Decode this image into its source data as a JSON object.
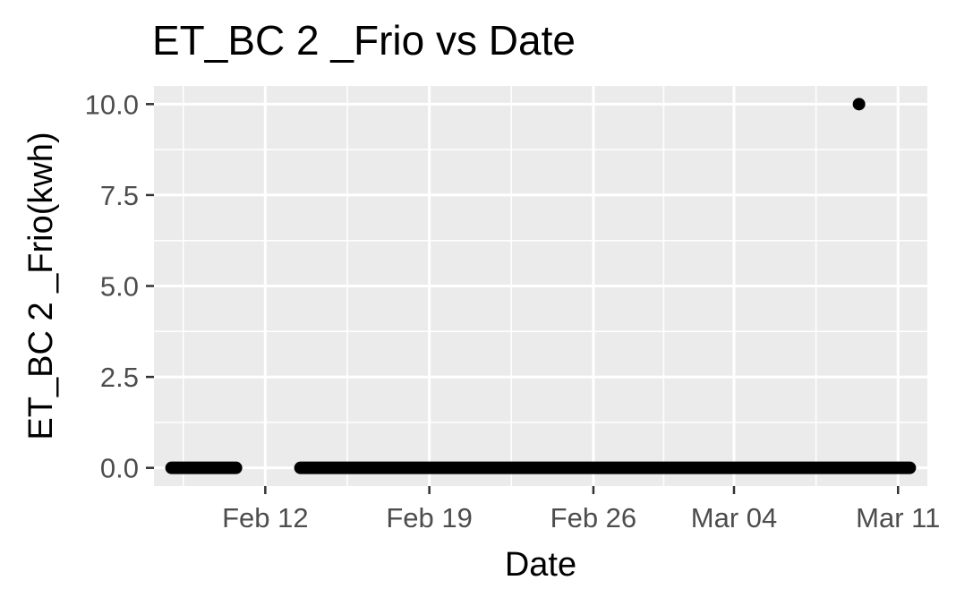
{
  "chart_data": {
    "type": "scatter",
    "title": "ET_BC 2 _Frio vs Date",
    "xlabel": "Date",
    "ylabel": "ET_BC 2 _Frio(kwh)",
    "x_ticks": [
      {
        "date": "2018-02-12",
        "label": "Feb 12"
      },
      {
        "date": "2018-02-19",
        "label": "Feb 19"
      },
      {
        "date": "2018-02-26",
        "label": "Feb 26"
      },
      {
        "date": "2018-03-04",
        "label": "Mar 04"
      },
      {
        "date": "2018-03-11",
        "label": "Mar 11"
      }
    ],
    "y_ticks": [
      0,
      2.5,
      5,
      7.5,
      10
    ],
    "y_tick_labels": [
      "0.0",
      "2.5",
      "5.0",
      "7.5",
      "10.0"
    ],
    "xlim": [
      "2018-02-07T06:00",
      "2018-03-12T06:00"
    ],
    "ylim": [
      -0.5,
      10.5
    ],
    "grid": true,
    "legend": "none",
    "point_color": "#000000",
    "panel_background": "#ebebeb",
    "grid_color": "#ffffff",
    "segments": [
      {
        "x_start": "2018-02-08T00:00",
        "x_end": "2018-02-10T18:00",
        "y": 0
      },
      {
        "x_start": "2018-02-13T12:00",
        "x_end": "2018-03-11T12:00",
        "y": 0
      }
    ],
    "points": [
      {
        "x": "2018-03-09T08:00",
        "y": 10
      }
    ]
  }
}
